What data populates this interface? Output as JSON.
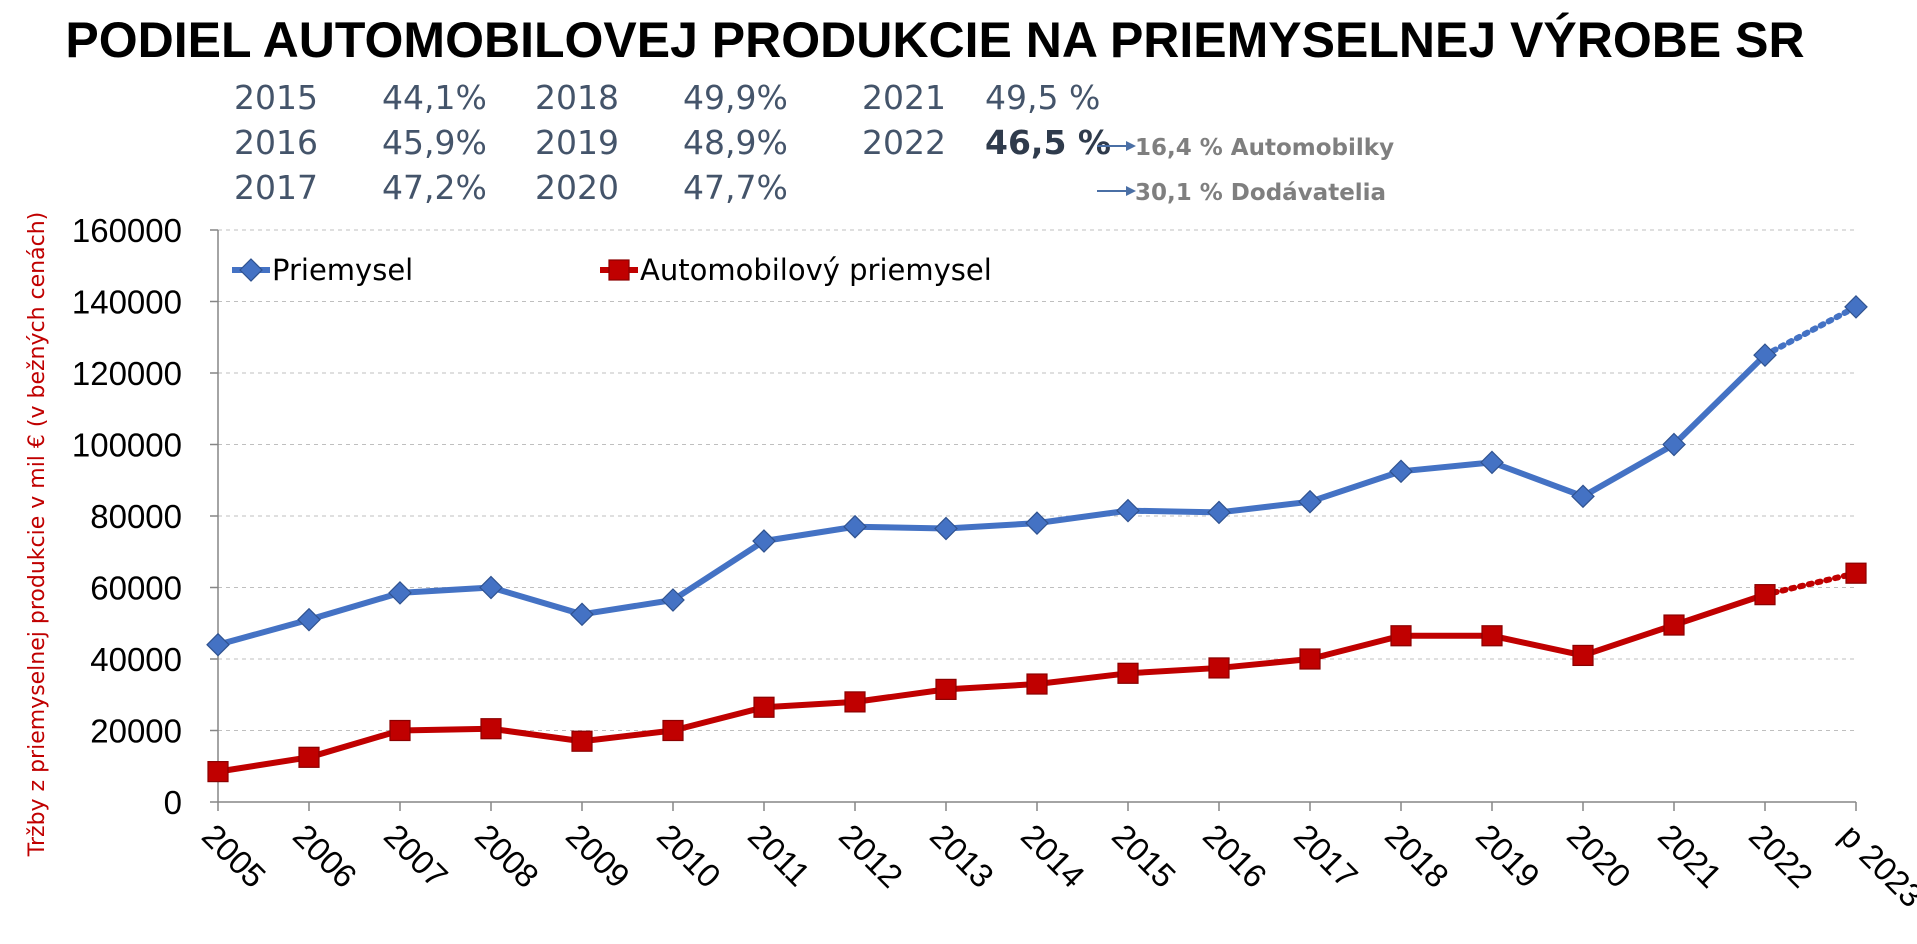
{
  "title": "PODIEL AUTOMOBILOVEJ PRODUKCIE NA PRIEMYSELNEJ VÝROBE SR",
  "share_table": [
    {
      "year": "2015",
      "value": "44,1%",
      "bold": false
    },
    {
      "year": "2016",
      "value": "45,9%",
      "bold": false
    },
    {
      "year": "2017",
      "value": "47,2%",
      "bold": false
    },
    {
      "year": "2018",
      "value": "49,9%",
      "bold": false
    },
    {
      "year": "2019",
      "value": "48,9%",
      "bold": false
    },
    {
      "year": "2020",
      "value": "47,7%",
      "bold": false
    },
    {
      "year": "2021",
      "value": "49,5 %",
      "bold": false
    },
    {
      "year": "2022",
      "value": "46,5 %",
      "bold": true
    }
  ],
  "breakdown": [
    {
      "label": "16,4 % Automobilky"
    },
    {
      "label": "30,1 % Dodávatelia"
    }
  ],
  "colors": {
    "priemysel": "#4472c4",
    "automobilovy": "#c00000",
    "arrow": "#4a6fa5"
  },
  "chart_data": {
    "type": "line",
    "ylabel": "Tržby z priemyselnej produkcie v mil € (v bežných cenách)",
    "xlabel": "",
    "ylim": [
      0,
      160000
    ],
    "yticks": [
      "0",
      "20000",
      "40000",
      "60000",
      "80000",
      "100000",
      "120000",
      "140000",
      "160000"
    ],
    "categories": [
      "2005",
      "2006",
      "2007",
      "2008",
      "2009",
      "2010",
      "2011",
      "2012",
      "2013",
      "2014",
      "2015",
      "2016",
      "2017",
      "2018",
      "2019",
      "2020",
      "2021",
      "2022",
      "p 2023"
    ],
    "grid": true,
    "legend_position": "top-left",
    "projection_from_index": 17,
    "series": [
      {
        "name": "Priemysel",
        "marker": "diamond",
        "values": [
          44000,
          51000,
          58500,
          60000,
          52500,
          56500,
          73000,
          77000,
          76500,
          78000,
          81500,
          81000,
          84000,
          92500,
          95000,
          85500,
          100000,
          125000,
          138500
        ]
      },
      {
        "name": "Automobilový priemysel",
        "marker": "square",
        "values": [
          8500,
          12500,
          20000,
          20500,
          17000,
          20000,
          26500,
          28000,
          31500,
          33000,
          36000,
          37500,
          40000,
          46500,
          46500,
          41000,
          49500,
          58000,
          64000
        ]
      }
    ]
  }
}
